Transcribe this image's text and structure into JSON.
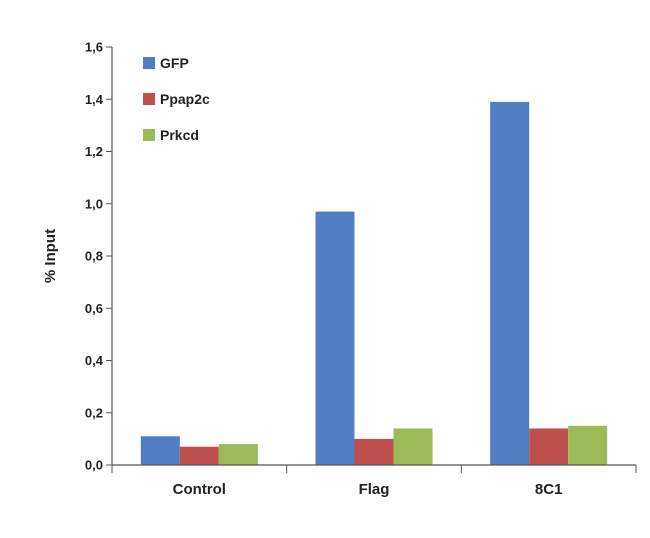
{
  "chart_data": {
    "type": "bar",
    "title": "",
    "xlabel": "",
    "ylabel": "% Input",
    "ylim": [
      0,
      1.6
    ],
    "yticks": [
      "0,0",
      "0,2",
      "0,4",
      "0,6",
      "0,8",
      "1,0",
      "1,2",
      "1,4",
      "1,6"
    ],
    "categories": [
      "Control",
      "Flag",
      "8C1"
    ],
    "series": [
      {
        "name": "GFP",
        "color": "#4F7FC2",
        "values": [
          0.11,
          0.97,
          1.39
        ]
      },
      {
        "name": "Ppap2c",
        "color": "#C0504D",
        "values": [
          0.07,
          0.1,
          0.14
        ]
      },
      {
        "name": "Prkcd",
        "color": "#9BBB59",
        "values": [
          0.08,
          0.14,
          0.15
        ]
      }
    ],
    "legend_position": "top-left",
    "grid": false
  }
}
